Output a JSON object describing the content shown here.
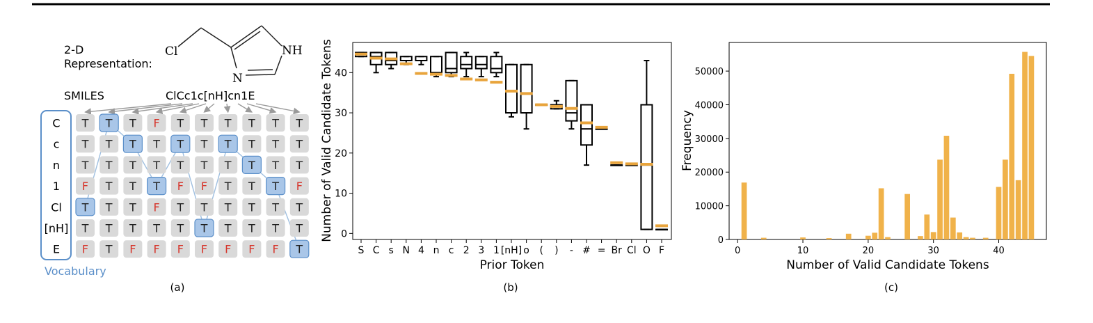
{
  "colors": {
    "accent": "#f0b24a",
    "median": "#e8a43c",
    "blue": "#5b8fc9",
    "cell": "#d9d9d9",
    "cellSel": "#a9c6e8",
    "red": "#d6352b"
  },
  "panel_a": {
    "caption": "(a)",
    "rep_label_1": "2-D",
    "rep_label_2": "Representation:",
    "smiles_label": "SMILES",
    "smiles": "ClCc1c[nH]cn1E",
    "atoms": {
      "cl": "Cl",
      "nh": "NH",
      "n": "N"
    },
    "vocab_label": "Vocabulary",
    "vocab": [
      "C",
      "c",
      "n",
      "1",
      "Cl",
      "[nH]",
      "E"
    ],
    "grid": [
      [
        "T",
        "T",
        "T",
        "F",
        "T",
        "T",
        "T",
        "T",
        "T",
        "T"
      ],
      [
        "T",
        "T",
        "T",
        "T",
        "T",
        "T",
        "T",
        "T",
        "T",
        "T"
      ],
      [
        "T",
        "T",
        "T",
        "T",
        "T",
        "T",
        "T",
        "T",
        "T",
        "T"
      ],
      [
        "F",
        "T",
        "T",
        "T",
        "F",
        "F",
        "T",
        "T",
        "T",
        "F"
      ],
      [
        "T",
        "T",
        "T",
        "F",
        "T",
        "T",
        "T",
        "T",
        "T",
        "T"
      ],
      [
        "T",
        "T",
        "T",
        "T",
        "T",
        "T",
        "T",
        "T",
        "T",
        "T"
      ],
      [
        "F",
        "T",
        "F",
        "F",
        "F",
        "F",
        "F",
        "F",
        "F",
        "T"
      ]
    ],
    "path": [
      [
        4,
        0
      ],
      [
        0,
        1
      ],
      [
        1,
        2
      ],
      [
        3,
        3
      ],
      [
        1,
        4
      ],
      [
        5,
        5
      ],
      [
        1,
        6
      ],
      [
        2,
        7
      ],
      [
        3,
        8
      ],
      [
        6,
        9
      ]
    ]
  },
  "chart_data": [
    {
      "type": "box",
      "caption": "(b)",
      "xlabel": "Prior Token",
      "ylabel": "Number of Valid Candidate Tokens",
      "ylim": [
        -1.5,
        47.5
      ],
      "yticks": [
        0,
        10,
        20,
        30,
        40
      ],
      "categories": [
        "S",
        "C",
        "s",
        "N",
        "4",
        "n",
        "c",
        "2",
        "3",
        "1",
        "[nH]",
        "o",
        "(",
        ")",
        "-",
        "#",
        "=",
        "Br",
        "Cl",
        "O",
        "F"
      ],
      "boxes": [
        {
          "q1": 44,
          "q3": 45,
          "min": 44,
          "max": 45,
          "median": 44.5,
          "mean": 44.6
        },
        {
          "q1": 42,
          "q3": 45,
          "min": 40,
          "max": 45,
          "median": 44,
          "mean": 43.6
        },
        {
          "q1": 42,
          "q3": 45,
          "min": 41,
          "max": 45,
          "median": 43,
          "mean": 43.4
        },
        {
          "q1": 43,
          "q3": 44,
          "min": 42,
          "max": 44,
          "median": 43,
          "mean": 42.2
        },
        {
          "q1": 43,
          "q3": 44,
          "min": 42,
          "max": 44,
          "median": 43,
          "mean": 39.8
        },
        {
          "q1": 40,
          "q3": 44,
          "min": 39,
          "max": 44,
          "median": 40,
          "mean": 39.6
        },
        {
          "q1": 40,
          "q3": 45,
          "min": 39,
          "max": 45,
          "median": 41,
          "mean": 39.3
        },
        {
          "q1": 41,
          "q3": 44,
          "min": 39,
          "max": 45,
          "median": 42,
          "mean": 38.4
        },
        {
          "q1": 41,
          "q3": 44,
          "min": 39,
          "max": 44,
          "median": 42,
          "mean": 38.2
        },
        {
          "q1": 40,
          "q3": 44,
          "min": 39,
          "max": 45,
          "median": 41,
          "mean": 37.6
        },
        {
          "q1": 30,
          "q3": 42,
          "min": 29,
          "max": 42,
          "median": 30,
          "mean": 35.4
        },
        {
          "q1": 30,
          "q3": 42,
          "min": 26,
          "max": 42,
          "median": 30,
          "mean": 34.8
        },
        {
          "q1": 32,
          "q3": 32,
          "min": 32,
          "max": 32,
          "median": 32,
          "mean": 32.0
        },
        {
          "q1": 31,
          "q3": 32,
          "min": 31,
          "max": 33,
          "median": 32,
          "mean": 31.6
        },
        {
          "q1": 28,
          "q3": 38,
          "min": 26,
          "max": 38,
          "median": 30,
          "mean": 31.1
        },
        {
          "q1": 22,
          "q3": 32,
          "min": 17,
          "max": 32,
          "median": 26,
          "mean": 27.5
        },
        {
          "q1": 26,
          "q3": 26,
          "min": 26,
          "max": 26,
          "median": 26,
          "mean": 26.4
        },
        {
          "q1": 17,
          "q3": 17,
          "min": 17,
          "max": 17,
          "median": 17,
          "mean": 17.6
        },
        {
          "q1": 17,
          "q3": 17,
          "min": 17,
          "max": 17,
          "median": 17,
          "mean": 17.3
        },
        {
          "q1": 1,
          "q3": 32,
          "min": 1,
          "max": 43,
          "median": 17,
          "mean": 17.2
        },
        {
          "q1": 1,
          "q3": 1,
          "min": 1,
          "max": 1,
          "median": 1,
          "mean": 1.9
        }
      ]
    },
    {
      "type": "bar",
      "caption": "(c)",
      "xlabel": "Number of Valid Candidate Tokens",
      "ylabel": "Frequency",
      "xlim": [
        -1.3,
        47.3
      ],
      "ylim": [
        0,
        58500
      ],
      "xticks": [
        0,
        10,
        20,
        30,
        40
      ],
      "yticks": [
        0,
        10000,
        20000,
        30000,
        40000,
        50000
      ],
      "x": [
        1,
        4,
        10,
        14,
        17,
        20,
        21,
        22,
        23,
        26,
        28,
        29,
        30,
        31,
        32,
        33,
        34,
        35,
        36,
        38,
        40,
        41,
        42,
        43,
        44,
        45
      ],
      "values": [
        16900,
        500,
        600,
        400,
        1700,
        1100,
        2000,
        15200,
        700,
        13500,
        1000,
        7400,
        2200,
        23700,
        30800,
        6500,
        2100,
        700,
        500,
        500,
        15600,
        23700,
        49200,
        17600,
        55700,
        54500
      ]
    }
  ]
}
